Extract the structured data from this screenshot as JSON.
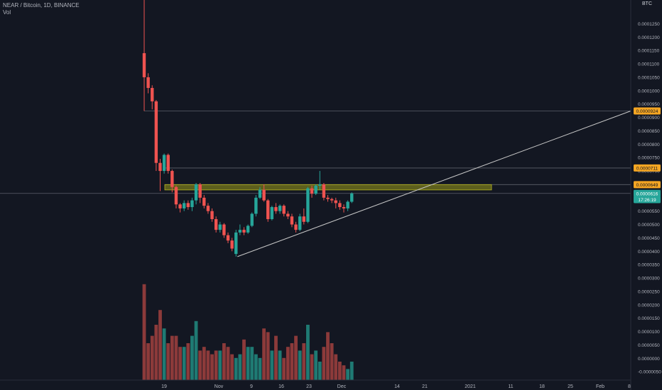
{
  "header": {
    "symbol_line": "NEAR / Bitcoin, 1D, BINANCE",
    "indicator": "Vol"
  },
  "axis": {
    "currency": "BTC",
    "price_ticks": [
      "0.0001250",
      "0.0001200",
      "0.0001150",
      "0.0001100",
      "0.0001050",
      "0.0001000",
      "0.0000950",
      "0.0000900",
      "0.0000850",
      "0.0000800",
      "0.0000750",
      "0.0000700",
      "0.0000600",
      "0.0000550",
      "0.0000500",
      "0.0000450",
      "0.0000400",
      "0.0000350",
      "0.0000300",
      "0.0000250",
      "0.0000200",
      "0.0000150",
      "0.0000100",
      "0.0000050",
      "0.0000000",
      "-0.0000050"
    ],
    "date_ticks": [
      "19",
      "Nov",
      "9",
      "16",
      "23",
      "Dec",
      "14",
      "21",
      "2021",
      "11",
      "18",
      "25",
      "Feb",
      "8"
    ]
  },
  "price_labels": [
    {
      "name": "resistance-high-label",
      "text": "0.0000924",
      "value": 9.24e-05,
      "bg": "#f5a623",
      "fg": "#131722"
    },
    {
      "name": "resistance-mid-label",
      "text": "0.0000711",
      "value": 7.11e-05,
      "bg": "#f5a623",
      "fg": "#131722"
    },
    {
      "name": "zone-top-label",
      "text": "0.0000649",
      "value": 6.49e-05,
      "bg": "#f5a623",
      "fg": "#131722"
    },
    {
      "name": "last-price-label",
      "text": "0.0000616",
      "value": 6.16e-05,
      "bg": "#26a69a",
      "fg": "#ffffff"
    },
    {
      "name": "countdown-label",
      "text": "17:26:19",
      "value": 5.93e-05,
      "bg": "#26a69a",
      "fg": "#ffffff"
    }
  ],
  "colors": {
    "up": "#26a69a",
    "down": "#ef5350",
    "vol_up": "#1f7a73",
    "vol_down": "#8c3a3a",
    "grid_text": "#b2b5be",
    "zone": "#9a9a1a",
    "trendline": "#c8c8c8",
    "hline": "#5d606b"
  },
  "chart_data": {
    "type": "candlestick",
    "symbol": "NEAR / Bitcoin, 1D, BINANCE",
    "ylim": [
      -6e-06,
      0.000134
    ],
    "candles": [
      {
        "o": 0.000114,
        "h": 0.000134,
        "l": 9.24e-05,
        "c": 0.000105
      },
      {
        "o": 0.000105,
        "h": 0.0001065,
        "l": 9.9e-05,
        "c": 0.000101
      },
      {
        "o": 0.000101,
        "h": 0.000102,
        "l": 9.3e-05,
        "c": 9.6e-05
      },
      {
        "o": 9.6e-05,
        "h": 9.65e-05,
        "l": 7e-05,
        "c": 7.3e-05
      },
      {
        "o": 7.3e-05,
        "h": 7.45e-05,
        "l": 6.25e-05,
        "c": 7e-05
      },
      {
        "o": 7e-05,
        "h": 7.65e-05,
        "l": 6.9e-05,
        "c": 7.6e-05
      },
      {
        "o": 7.6e-05,
        "h": 7.65e-05,
        "l": 6.9e-05,
        "c": 7e-05
      },
      {
        "o": 7e-05,
        "h": 7.05e-05,
        "l": 6.2e-05,
        "c": 6.4e-05
      },
      {
        "o": 6.4e-05,
        "h": 6.45e-05,
        "l": 5.6e-05,
        "c": 5.75e-05
      },
      {
        "o": 5.75e-05,
        "h": 5.8e-05,
        "l": 5.45e-05,
        "c": 5.6e-05
      },
      {
        "o": 5.6e-05,
        "h": 5.9e-05,
        "l": 5.5e-05,
        "c": 5.8e-05
      },
      {
        "o": 5.8e-05,
        "h": 5.9e-05,
        "l": 5.55e-05,
        "c": 5.65e-05
      },
      {
        "o": 5.65e-05,
        "h": 6e-05,
        "l": 5.5e-05,
        "c": 5.9e-05
      },
      {
        "o": 5.9e-05,
        "h": 6.55e-05,
        "l": 5.75e-05,
        "c": 6.5e-05
      },
      {
        "o": 6.5e-05,
        "h": 6.55e-05,
        "l": 5.8e-05,
        "c": 6e-05
      },
      {
        "o": 6e-05,
        "h": 6.1e-05,
        "l": 5.6e-05,
        "c": 5.7e-05
      },
      {
        "o": 5.7e-05,
        "h": 5.8e-05,
        "l": 5.4e-05,
        "c": 5.5e-05
      },
      {
        "o": 5.5e-05,
        "h": 5.6e-05,
        "l": 5.1e-05,
        "c": 5.2e-05
      },
      {
        "o": 5.2e-05,
        "h": 5.3e-05,
        "l": 4.7e-05,
        "c": 4.8e-05
      },
      {
        "o": 4.8e-05,
        "h": 5.1e-05,
        "l": 4.7e-05,
        "c": 5e-05
      },
      {
        "o": 5e-05,
        "h": 5.05e-05,
        "l": 4.5e-05,
        "c": 4.6e-05
      },
      {
        "o": 4.6e-05,
        "h": 4.7e-05,
        "l": 4.3e-05,
        "c": 4.4e-05
      },
      {
        "o": 4.4e-05,
        "h": 4.5e-05,
        "l": 4e-05,
        "c": 4.1e-05
      },
      {
        "o": 3.9e-05,
        "h": 4.8e-05,
        "l": 3.8e-05,
        "c": 4.7e-05
      },
      {
        "o": 4.7e-05,
        "h": 5e-05,
        "l": 4.6e-05,
        "c": 4.8e-05
      },
      {
        "o": 4.8e-05,
        "h": 4.9e-05,
        "l": 4.6e-05,
        "c": 4.7e-05
      },
      {
        "o": 4.7e-05,
        "h": 5e-05,
        "l": 4.65e-05,
        "c": 4.95e-05
      },
      {
        "o": 4.95e-05,
        "h": 5.45e-05,
        "l": 4.9e-05,
        "c": 5.4e-05
      },
      {
        "o": 5.4e-05,
        "h": 6.1e-05,
        "l": 5.3e-05,
        "c": 6e-05
      },
      {
        "o": 6e-05,
        "h": 6.4e-05,
        "l": 5.95e-05,
        "c": 6.3e-05
      },
      {
        "o": 6.3e-05,
        "h": 6.5e-05,
        "l": 5.85e-05,
        "c": 5.9e-05
      },
      {
        "o": 5.9e-05,
        "h": 5.95e-05,
        "l": 5.1e-05,
        "c": 5.2e-05
      },
      {
        "o": 5.2e-05,
        "h": 5.7e-05,
        "l": 5.15e-05,
        "c": 5.65e-05
      },
      {
        "o": 5.65e-05,
        "h": 5.8e-05,
        "l": 5.4e-05,
        "c": 5.5e-05
      },
      {
        "o": 5.5e-05,
        "h": 5.75e-05,
        "l": 5.4e-05,
        "c": 5.7e-05
      },
      {
        "o": 5.7e-05,
        "h": 5.75e-05,
        "l": 5.3e-05,
        "c": 5.4e-05
      },
      {
        "o": 5.4e-05,
        "h": 5.5e-05,
        "l": 5.2e-05,
        "c": 5.3e-05
      },
      {
        "o": 5.3e-05,
        "h": 5.4e-05,
        "l": 4.9e-05,
        "c": 5e-05
      },
      {
        "o": 5e-05,
        "h": 5.1e-05,
        "l": 4.7e-05,
        "c": 4.8e-05
      },
      {
        "o": 4.8e-05,
        "h": 5.4e-05,
        "l": 4.75e-05,
        "c": 5.3e-05
      },
      {
        "o": 5.3e-05,
        "h": 5.6e-05,
        "l": 5e-05,
        "c": 5.1e-05
      },
      {
        "o": 5.1e-05,
        "h": 6.4e-05,
        "l": 5.05e-05,
        "c": 6.35e-05
      },
      {
        "o": 6.35e-05,
        "h": 6.45e-05,
        "l": 6e-05,
        "c": 6.15e-05
      },
      {
        "o": 6.15e-05,
        "h": 6.5e-05,
        "l": 6.1e-05,
        "c": 6.45e-05
      },
      {
        "o": 6.45e-05,
        "h": 7e-05,
        "l": 6.3e-05,
        "c": 6.5e-05
      },
      {
        "o": 6.5e-05,
        "h": 6.55e-05,
        "l": 5.9e-05,
        "c": 6e-05
      },
      {
        "o": 6e-05,
        "h": 6.1e-05,
        "l": 5.85e-05,
        "c": 5.95e-05
      },
      {
        "o": 5.95e-05,
        "h": 6e-05,
        "l": 5.8e-05,
        "c": 5.9e-05
      },
      {
        "o": 5.9e-05,
        "h": 6e-05,
        "l": 5.6e-05,
        "c": 5.8e-05
      },
      {
        "o": 5.8e-05,
        "h": 5.9e-05,
        "l": 5.55e-05,
        "c": 5.65e-05
      },
      {
        "o": 5.65e-05,
        "h": 5.75e-05,
        "l": 5.45e-05,
        "c": 5.6e-05
      },
      {
        "o": 5.6e-05,
        "h": 5.9e-05,
        "l": 5.5e-05,
        "c": 5.85e-05
      },
      {
        "o": 5.85e-05,
        "h": 6.2e-05,
        "l": 5.8e-05,
        "c": 6.16e-05
      }
    ],
    "volume": [
      26,
      10,
      12,
      15,
      19,
      14,
      10,
      12,
      12,
      9,
      9,
      10,
      12,
      16,
      8,
      9,
      8,
      7,
      8,
      8,
      10,
      9,
      7,
      6,
      7,
      11,
      9,
      9,
      7,
      6,
      14,
      13,
      8,
      12,
      8,
      6,
      9,
      10,
      12,
      8,
      10,
      15,
      7,
      8,
      5,
      9,
      13,
      10,
      7,
      5,
      4,
      3,
      5
    ],
    "resistance_zone": [
      6.29e-05,
      6.49e-05
    ],
    "horizontal_levels": [
      9.24e-05,
      7.11e-05,
      6.49e-05,
      6.16e-05
    ],
    "ascending_trendline": [
      {
        "bar": 23,
        "price": 3.8e-05
      },
      {
        "bar": 130,
        "price": 9.24e-05
      }
    ]
  }
}
